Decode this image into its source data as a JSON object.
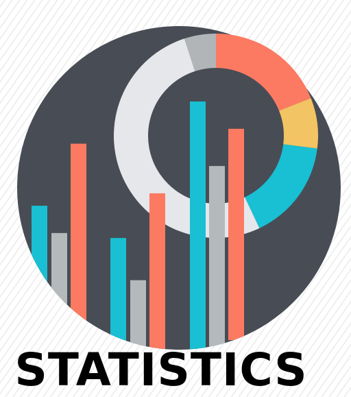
{
  "caption": "STATISTICS",
  "colors": {
    "circle": "#484c54",
    "ring_background": "#e5e7eb",
    "teal": "#19bfd3",
    "gray": "#b4b9bc",
    "coral": "#fc7a62",
    "yellow": "#f2c463",
    "dark_gray": "#b1b5b8"
  },
  "icons": [
    "statistics-circle-icon",
    "donut-chart-icon",
    "bar-chart-icon"
  ],
  "donut": {
    "segments": [
      {
        "color": "coral",
        "share": 0.19
      },
      {
        "color": "yellow",
        "share": 0.08
      },
      {
        "color": "teal",
        "share": 0.16
      },
      {
        "color": "ring_background",
        "share": 0.52
      },
      {
        "color": "dark_gray",
        "share": 0.05
      }
    ]
  },
  "bars": [
    {
      "color": "teal",
      "value": 0.58
    },
    {
      "color": "gray",
      "value": 0.47
    },
    {
      "color": "coral",
      "value": 0.83
    },
    {
      "color": "teal",
      "value": 0.45
    },
    {
      "color": "gray",
      "value": 0.28
    },
    {
      "color": "coral",
      "value": 0.63
    },
    {
      "color": "teal",
      "value": 1.0
    },
    {
      "color": "gray",
      "value": 0.74
    },
    {
      "color": "coral",
      "value": 0.89
    }
  ]
}
